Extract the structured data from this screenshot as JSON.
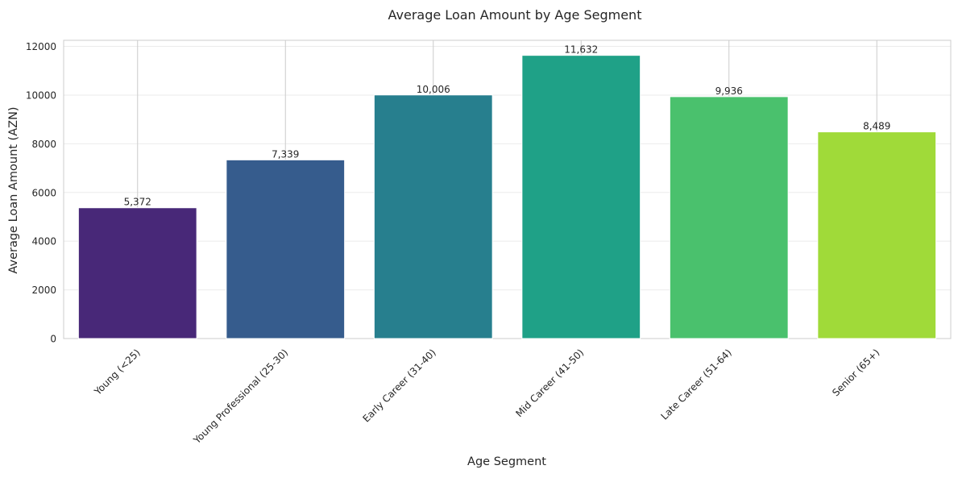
{
  "chart_data": {
    "type": "bar",
    "title": "Average Loan Amount by Age Segment",
    "xlabel": "Age Segment",
    "ylabel": "Average Loan Amount (AZN)",
    "categories": [
      "Young (<25)",
      "Young Professional (25-30)",
      "Early Career (31-40)",
      "Mid Career (41-50)",
      "Late Career (51-64)",
      "Senior (65+)"
    ],
    "values": [
      5372,
      7339,
      10006,
      11632,
      9936,
      8489
    ],
    "value_labels": [
      "5,372",
      "7,339",
      "10,006",
      "11,632",
      "9,936",
      "8,489"
    ],
    "colors": [
      "#482878",
      "#365c8d",
      "#277f8e",
      "#1fa187",
      "#4ac16d",
      "#a0da39"
    ],
    "ylim": [
      0,
      12250
    ],
    "yticks": [
      0,
      2000,
      4000,
      6000,
      8000,
      10000,
      12000
    ],
    "ytick_labels": [
      "0",
      "2000",
      "4000",
      "6000",
      "8000",
      "10000",
      "12000"
    ],
    "grid": true,
    "legend": false
  }
}
